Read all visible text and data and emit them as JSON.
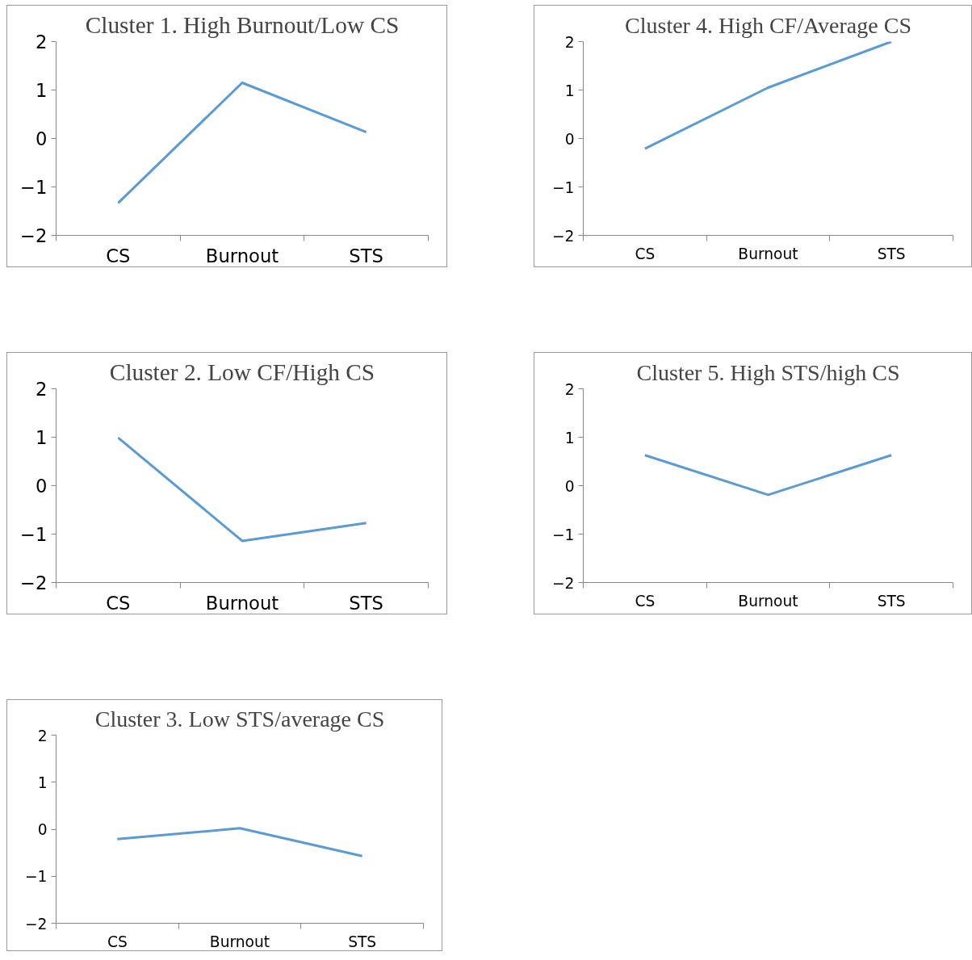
{
  "chart_data": [
    {
      "type": "line",
      "title": "Cluster 1. High Burnout/Low CS",
      "categories": [
        "CS",
        "Burnout",
        "STS"
      ],
      "series": [
        {
          "color": "#5b9bd5",
          "values": [
            -1.33,
            1.15,
            0.13
          ]
        }
      ],
      "ylim": [
        -2,
        2
      ],
      "yticks": [
        -2,
        -1,
        0,
        1,
        2
      ]
    },
    {
      "type": "line",
      "title": "Cluster 4. High CF/Average CS",
      "categories": [
        "CS",
        "Burnout",
        "STS"
      ],
      "series": [
        {
          "color": "#5b9bd5",
          "values": [
            -0.21,
            1.05,
            2.0
          ]
        }
      ],
      "ylim": [
        -2,
        2
      ],
      "yticks": [
        -2,
        -1,
        0,
        1,
        2
      ]
    },
    {
      "type": "line",
      "title": "Cluster 2. Low CF/High CS",
      "categories": [
        "CS",
        "Burnout",
        "STS"
      ],
      "series": [
        {
          "color": "#5b9bd5",
          "values": [
            0.99,
            -1.14,
            -0.77
          ]
        }
      ],
      "ylim": [
        -2,
        2
      ],
      "yticks": [
        -2,
        -1,
        0,
        1,
        2
      ]
    },
    {
      "type": "line",
      "title": "Cluster 5. High STS/high CS",
      "categories": [
        "CS",
        "Burnout",
        "STS"
      ],
      "series": [
        {
          "color": "#5b9bd5",
          "values": [
            0.63,
            -0.19,
            0.63
          ]
        }
      ],
      "ylim": [
        -2,
        2
      ],
      "yticks": [
        -2,
        -1,
        0,
        1,
        2
      ]
    },
    {
      "type": "line",
      "title": "Cluster 3. Low STS/average CS",
      "categories": [
        "CS",
        "Burnout",
        "STS"
      ],
      "series": [
        {
          "color": "#5b9bd5",
          "values": [
            -0.21,
            0.02,
            -0.57
          ]
        }
      ],
      "ylim": [
        -2,
        2
      ],
      "yticks": [
        -2,
        -1,
        0,
        1,
        2
      ]
    }
  ]
}
